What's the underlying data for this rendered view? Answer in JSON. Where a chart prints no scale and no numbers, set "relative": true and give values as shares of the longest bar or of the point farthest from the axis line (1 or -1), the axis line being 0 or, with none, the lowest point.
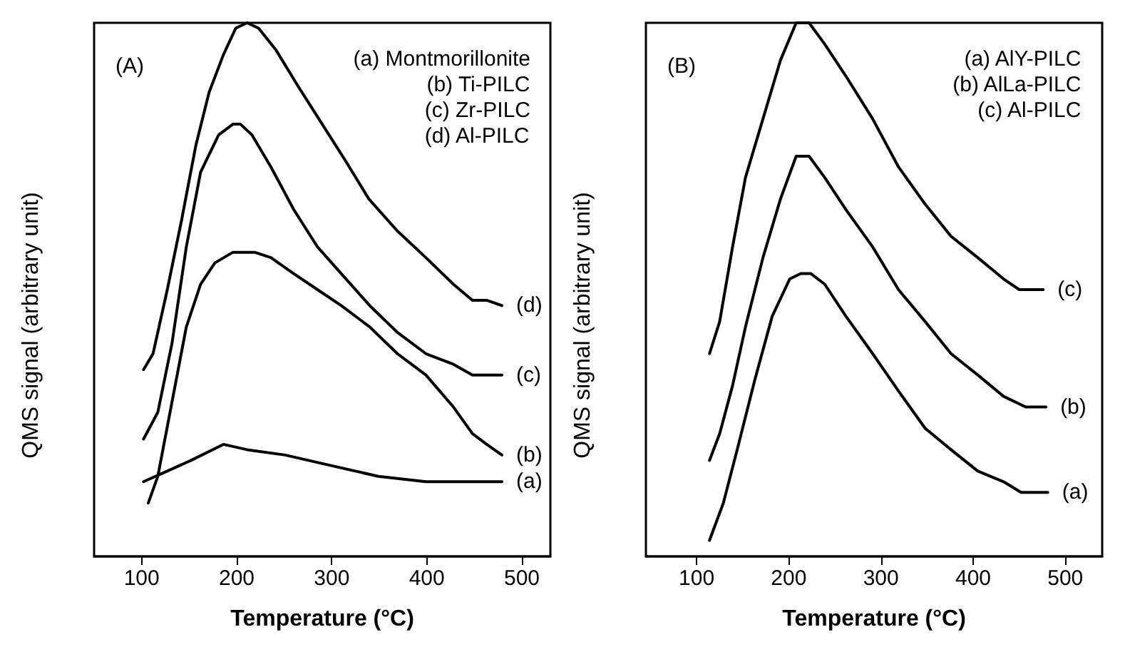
{
  "chart_data": [
    {
      "type": "line",
      "title": "(A)",
      "xlabel": "Temperature (°C)",
      "ylabel": "QMS signal (arbitrary unit)",
      "relative": true,
      "xlim": [
        50,
        530
      ],
      "xticks": [
        100,
        200,
        300,
        400,
        500
      ],
      "grid": false,
      "marker": "none",
      "line_style": "solid",
      "annotations": [
        "(a) Montmorillonite",
        "(b) Ti-PILC",
        "(c) Zr-PILC",
        "(d) Al-PILC"
      ],
      "series": [
        {
          "name": "(a)",
          "color": "#000000",
          "x": [
            102,
            127,
            152,
            186,
            211,
            251,
            300,
            349,
            399,
            479
          ],
          "values": [
            0.14,
            0.16,
            0.18,
            0.21,
            0.2,
            0.19,
            0.17,
            0.15,
            0.14,
            0.14
          ]
        },
        {
          "name": "(b)",
          "color": "#000000",
          "x": [
            107,
            117,
            132,
            147,
            162,
            177,
            196,
            219,
            236,
            260,
            285,
            310,
            340,
            369,
            399,
            428,
            448,
            463,
            479
          ],
          "values": [
            0.1,
            0.15,
            0.29,
            0.43,
            0.51,
            0.55,
            0.57,
            0.57,
            0.56,
            0.53,
            0.5,
            0.47,
            0.43,
            0.38,
            0.34,
            0.28,
            0.23,
            0.21,
            0.19
          ]
        },
        {
          "name": "(c)",
          "color": "#000000",
          "x": [
            102,
            117,
            132,
            147,
            162,
            181,
            196,
            204,
            216,
            236,
            260,
            285,
            310,
            340,
            369,
            399,
            428,
            448,
            479
          ],
          "values": [
            0.22,
            0.27,
            0.4,
            0.58,
            0.72,
            0.79,
            0.81,
            0.81,
            0.79,
            0.73,
            0.65,
            0.58,
            0.53,
            0.47,
            0.42,
            0.38,
            0.36,
            0.34,
            0.34
          ]
        },
        {
          "name": "(d)",
          "color": "#000000",
          "x": [
            102,
            112,
            127,
            142,
            157,
            171,
            186,
            199,
            211,
            223,
            241,
            265,
            290,
            315,
            339,
            369,
            399,
            428,
            448,
            463,
            479
          ],
          "values": [
            0.35,
            0.38,
            0.5,
            0.63,
            0.77,
            0.87,
            0.94,
            0.99,
            1.0,
            0.99,
            0.95,
            0.88,
            0.81,
            0.74,
            0.67,
            0.61,
            0.56,
            0.51,
            0.48,
            0.48,
            0.47
          ]
        }
      ]
    },
    {
      "type": "line",
      "title": "(B)",
      "xlabel": "Temperature (°C)",
      "ylabel": "QMS signal (arbitrary unit)",
      "relative": true,
      "xlim": [
        45,
        540
      ],
      "xticks": [
        100,
        200,
        300,
        400,
        500
      ],
      "grid": false,
      "marker": "none",
      "line_style": "solid",
      "annotations": [
        "(a) AlY-PILC",
        "(b) AlLa-PILC",
        "(c) Al-PILC"
      ],
      "series": [
        {
          "name": "(a)",
          "color": "#000000",
          "x": [
            114,
            129,
            144,
            163,
            182,
            201,
            213,
            224,
            239,
            262,
            291,
            319,
            348,
            376,
            405,
            433,
            452,
            481
          ],
          "values": [
            0.03,
            0.1,
            0.2,
            0.33,
            0.45,
            0.52,
            0.53,
            0.53,
            0.51,
            0.45,
            0.38,
            0.31,
            0.24,
            0.2,
            0.16,
            0.14,
            0.12,
            0.12
          ]
        },
        {
          "name": "(b)",
          "color": "#000000",
          "x": [
            114,
            125,
            139,
            153,
            172,
            191,
            208,
            222,
            239,
            262,
            291,
            319,
            348,
            376,
            405,
            433,
            457,
            479
          ],
          "values": [
            0.18,
            0.23,
            0.32,
            0.43,
            0.56,
            0.67,
            0.75,
            0.75,
            0.71,
            0.65,
            0.58,
            0.5,
            0.44,
            0.38,
            0.34,
            0.3,
            0.28,
            0.28
          ]
        },
        {
          "name": "(c)",
          "color": "#000000",
          "x": [
            114,
            125,
            139,
            153,
            172,
            191,
            208,
            222,
            239,
            262,
            291,
            319,
            348,
            376,
            405,
            433,
            450,
            476
          ],
          "values": [
            0.38,
            0.44,
            0.58,
            0.71,
            0.82,
            0.93,
            1.0,
            1.0,
            0.96,
            0.9,
            0.82,
            0.73,
            0.66,
            0.6,
            0.56,
            0.52,
            0.5,
            0.5
          ]
        }
      ]
    }
  ]
}
